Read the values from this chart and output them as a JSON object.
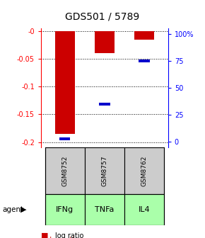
{
  "title": "GDS501 / 5789",
  "samples": [
    "GSM8752",
    "GSM8757",
    "GSM8762"
  ],
  "agents": [
    "IFNg",
    "TNFa",
    "IL4"
  ],
  "log_ratios": [
    -0.185,
    -0.04,
    -0.015
  ],
  "percentile_ranks": [
    3.0,
    35.0,
    75.0
  ],
  "ylim_left": [
    -0.21,
    0.005
  ],
  "ylim_right": [
    -5.25,
    105.0
  ],
  "yticks_left": [
    0.0,
    -0.05,
    -0.1,
    -0.15,
    -0.2
  ],
  "yticks_right": [
    0,
    25,
    50,
    75,
    100
  ],
  "ytick_labels_left": [
    "-0",
    "-0.05",
    "-0.1",
    "-0.15",
    "-0.2"
  ],
  "ytick_labels_right": [
    "0",
    "25",
    "50",
    "75",
    "100%"
  ],
  "bar_color": "#cc0000",
  "percentile_color": "#0000cc",
  "sample_bg_color": "#cccccc",
  "agent_bg_color": "#aaffaa",
  "bar_width": 0.5,
  "grid_color": "#000000"
}
